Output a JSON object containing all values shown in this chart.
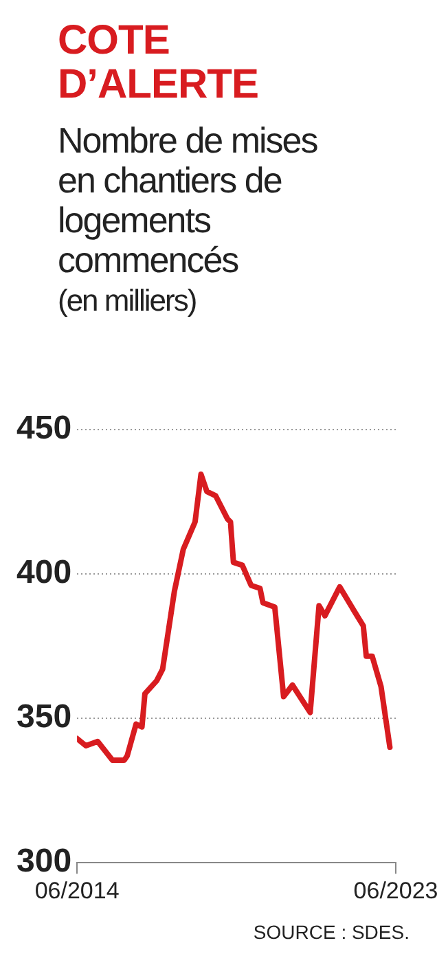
{
  "chart_data": {
    "type": "line",
    "title": "COTE D’ALERTE",
    "subtitle": "Nombre de mises en chantiers de logements commencés",
    "ylabel": "(en milliers)",
    "annotations": [
      "SOURCE : SDES."
    ],
    "x": [
      "2014-06",
      "2014-09",
      "2015-01",
      "2015-06",
      "2015-10",
      "2015-11",
      "2016-02",
      "2016-04",
      "2016-05",
      "2016-09",
      "2016-11",
      "2017-03",
      "2017-06",
      "2017-10",
      "2017-12",
      "2018-02",
      "2018-05",
      "2018-09",
      "2018-10",
      "2018-11",
      "2019-02",
      "2019-05",
      "2019-08",
      "2019-09",
      "2020-01",
      "2020-04",
      "2020-07",
      "2021-01",
      "2021-04",
      "2021-06",
      "2021-11",
      "2022-04",
      "2022-07",
      "2022-08",
      "2022-10",
      "2023-01",
      "2023-04"
    ],
    "series": [
      {
        "color": "#d81c20",
        "values": [
          343,
          340.5,
          342,
          335.5,
          335.5,
          337,
          348,
          347,
          358.5,
          363,
          367,
          394,
          408.5,
          418,
          434.5,
          428.5,
          427,
          419,
          418,
          404,
          403,
          396,
          395,
          390,
          388.5,
          357.5,
          361.5,
          352,
          389,
          385.5,
          395.5,
          387,
          382,
          371.5,
          371.5,
          361,
          340
        ]
      }
    ],
    "xlim": [
      "2014-06",
      "2023-06"
    ],
    "xticks": [
      {
        "value": "2014-06",
        "label": "06/2014"
      },
      {
        "value": "2023-06",
        "label": "06/2023"
      }
    ],
    "ylim": [
      300,
      450
    ],
    "yticks": [
      300,
      350,
      400,
      450
    ],
    "grid": "y",
    "legend": false,
    "marker": "none",
    "line_style": "solid"
  }
}
